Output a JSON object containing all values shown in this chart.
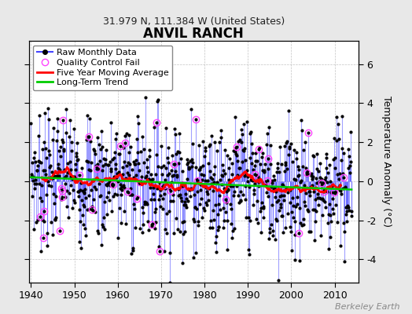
{
  "title": "ANVIL RANCH",
  "subtitle": "31.979 N, 111.384 W (United States)",
  "ylabel": "Temperature Anomaly (°C)",
  "watermark": "Berkeley Earth",
  "ylim": [
    -5.2,
    7.2
  ],
  "yticks": [
    -4,
    -2,
    0,
    2,
    4,
    6
  ],
  "xlim": [
    1939.5,
    2015.5
  ],
  "xticks": [
    1940,
    1950,
    1960,
    1970,
    1980,
    1990,
    2000,
    2010
  ],
  "start_year": 1940,
  "end_year": 2014,
  "n_months": 888,
  "seed_data": 7,
  "seed_qc": 55,
  "n_qc": 40,
  "bg_color": "#e8e8e8",
  "plot_bg_color": "#ffffff",
  "stem_color": "#4444ff",
  "stem_alpha": 0.5,
  "stem_lw": 0.8,
  "dot_color": "#000000",
  "dot_size": 2.0,
  "moving_avg_color": "#ff0000",
  "moving_avg_lw": 2.0,
  "trend_color": "#00cc00",
  "trend_lw": 1.8,
  "qc_fail_color": "#ff44ff",
  "qc_size": 6.0,
  "qc_lw": 1.0,
  "legend_fontsize": 8,
  "tick_fontsize": 9,
  "title_fontsize": 12,
  "subtitle_fontsize": 9,
  "watermark_fontsize": 8,
  "legend_items": [
    {
      "label": "Raw Monthly Data"
    },
    {
      "label": "Quality Control Fail"
    },
    {
      "label": "Five Year Moving Average"
    },
    {
      "label": "Long-Term Trend"
    }
  ]
}
